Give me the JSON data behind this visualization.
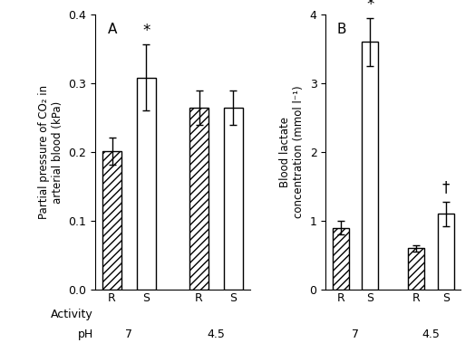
{
  "panel_A": {
    "label": "A",
    "ylabel": "Partial pressure of CO₂ in\narterial blood (kPa)",
    "ylim": [
      0,
      0.4
    ],
    "yticks": [
      0,
      0.1,
      0.2,
      0.3,
      0.4
    ],
    "values": [
      0.201,
      0.308,
      0.265,
      0.265
    ],
    "errors": [
      0.02,
      0.048,
      0.025,
      0.025
    ],
    "patterns": [
      "////",
      "",
      "////",
      ""
    ],
    "annotations": [
      {
        "text": "*",
        "bar_idx": 1
      },
      {
        "text": "",
        "bar_idx": 3
      }
    ]
  },
  "panel_B": {
    "label": "B",
    "ylabel": "Blood lactate\nconcentration (mmol l⁻¹)",
    "ylim": [
      0,
      4
    ],
    "yticks": [
      0,
      1,
      2,
      3,
      4
    ],
    "values": [
      0.9,
      3.6,
      0.6,
      1.1
    ],
    "errors": [
      0.1,
      0.35,
      0.05,
      0.18
    ],
    "patterns": [
      "////",
      "",
      "////",
      ""
    ],
    "annotations": [
      {
        "text": "*",
        "bar_idx": 1
      },
      {
        "text": "†",
        "bar_idx": 3
      }
    ]
  },
  "x_labels": [
    "R",
    "S",
    "R",
    "S"
  ],
  "ph_labels": [
    "7",
    "4.5"
  ],
  "activity_label": "Activity",
  "ph_row_label": "pH",
  "bar_width": 0.55,
  "edgecolor": "black",
  "background": "white"
}
